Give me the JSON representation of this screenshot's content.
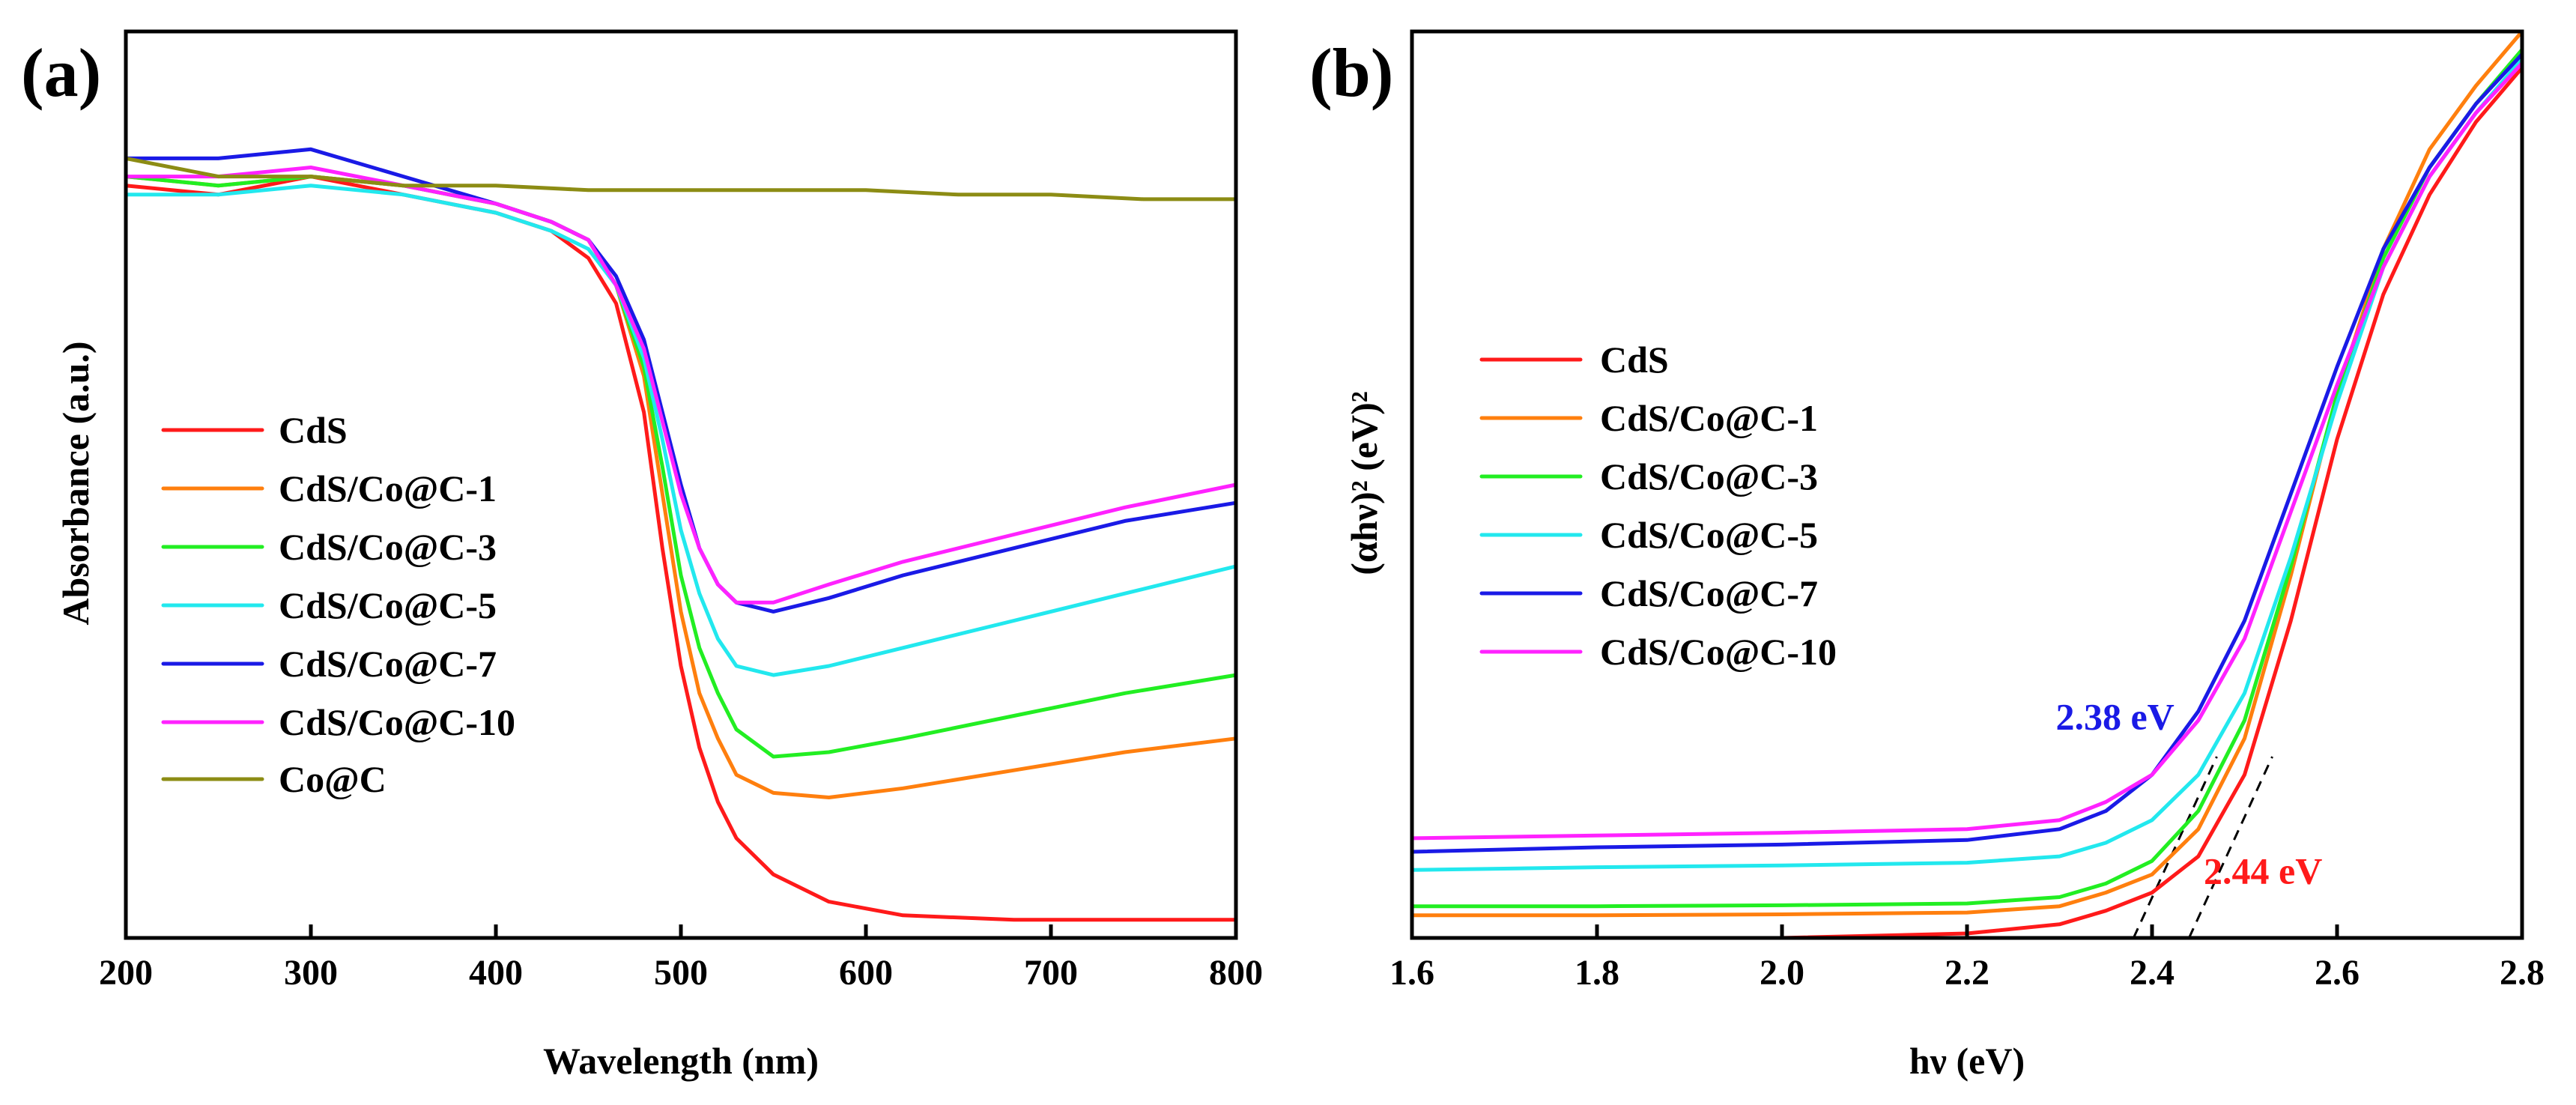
{
  "chart_data": [
    {
      "panel_label": "(a)",
      "type": "line",
      "xlabel": "Wavelength (nm)",
      "ylabel": "Absorbance (a.u.)",
      "xlim": [
        200,
        800
      ],
      "ylim": [
        0,
        100
      ],
      "xticks": [
        200,
        300,
        400,
        500,
        600,
        700,
        800
      ],
      "legend": [
        "CdS",
        "CdS/Co@C-1",
        "CdS/Co@C-3",
        "CdS/Co@C-5",
        "CdS/Co@C-7",
        "CdS/Co@C-10",
        "Co@C"
      ],
      "series": [
        {
          "name": "CdS",
          "color": "#ff1a1a",
          "x": [
            200,
            250,
            300,
            350,
            400,
            430,
            450,
            465,
            480,
            490,
            500,
            510,
            520,
            530,
            550,
            580,
            620,
            680,
            740,
            800
          ],
          "y": [
            83,
            82,
            84,
            82,
            80,
            78,
            75,
            70,
            58,
            43,
            30,
            21,
            15,
            11,
            7,
            4,
            2.5,
            2,
            2,
            2
          ]
        },
        {
          "name": "CdS/Co@C-1",
          "color": "#ff7f0e",
          "x": [
            200,
            250,
            300,
            350,
            400,
            430,
            450,
            465,
            480,
            490,
            500,
            510,
            520,
            530,
            550,
            580,
            620,
            680,
            740,
            800
          ],
          "y": [
            84,
            83,
            84,
            83,
            81,
            79,
            77,
            72,
            62,
            49,
            36,
            27,
            22,
            18,
            16,
            15.5,
            16.5,
            18.5,
            20.5,
            22
          ]
        },
        {
          "name": "CdS/Co@C-3",
          "color": "#22ee22",
          "x": [
            200,
            250,
            300,
            350,
            400,
            430,
            450,
            465,
            480,
            490,
            500,
            510,
            520,
            530,
            550,
            580,
            620,
            680,
            740,
            800
          ],
          "y": [
            84,
            83,
            84,
            83,
            81,
            79,
            77,
            72,
            63,
            52,
            40,
            32,
            27,
            23,
            20,
            20.5,
            22,
            24.5,
            27,
            29
          ]
        },
        {
          "name": "CdS/Co@C-5",
          "color": "#22e8ee",
          "x": [
            200,
            250,
            300,
            350,
            400,
            430,
            450,
            465,
            480,
            490,
            500,
            510,
            520,
            530,
            550,
            580,
            620,
            680,
            740,
            800
          ],
          "y": [
            82,
            82,
            83,
            82,
            80,
            78,
            76,
            72,
            64,
            55,
            45,
            38,
            33,
            30,
            29,
            30,
            32,
            35,
            38,
            41
          ]
        },
        {
          "name": "CdS/Co@C-7",
          "color": "#1a1ae6",
          "x": [
            200,
            250,
            300,
            350,
            400,
            430,
            450,
            465,
            480,
            490,
            500,
            510,
            520,
            530,
            550,
            580,
            620,
            680,
            740,
            800
          ],
          "y": [
            86,
            86,
            87,
            84,
            81,
            79,
            77,
            73,
            66,
            58,
            50,
            43,
            39,
            37,
            36,
            37.5,
            40,
            43,
            46,
            48
          ]
        },
        {
          "name": "CdS/Co@C-10",
          "color": "#ff22ff",
          "x": [
            200,
            250,
            300,
            350,
            400,
            430,
            450,
            465,
            480,
            490,
            500,
            510,
            520,
            530,
            550,
            580,
            620,
            680,
            740,
            800
          ],
          "y": [
            84,
            84,
            85,
            83,
            81,
            79,
            77,
            72,
            65,
            57,
            49,
            43,
            39,
            37,
            37,
            39,
            41.5,
            44.5,
            47.5,
            50
          ]
        },
        {
          "name": "Co@C",
          "color": "#8c8c14",
          "x": [
            200,
            250,
            300,
            350,
            400,
            450,
            500,
            550,
            600,
            650,
            700,
            750,
            800
          ],
          "y": [
            86,
            84,
            84,
            83,
            83,
            82.5,
            82.5,
            82.5,
            82.5,
            82,
            82,
            81.5,
            81.5
          ]
        }
      ]
    },
    {
      "panel_label": "(b)",
      "type": "line",
      "xlabel": "hν (eV)",
      "ylabel": "(αhν)² (eV)²",
      "xlim": [
        1.6,
        2.8
      ],
      "ylim": [
        0,
        100
      ],
      "xticks": [
        "1.6",
        "1.8",
        "2.0",
        "2.2",
        "2.4",
        "2.6",
        "2.8"
      ],
      "legend": [
        "CdS",
        "CdS/Co@C-1",
        "CdS/Co@C-3",
        "CdS/Co@C-5",
        "CdS/Co@C-7",
        "CdS/Co@C-10"
      ],
      "annotations": [
        {
          "text": "2.38 eV",
          "color": "#1a1ae6",
          "x": 2.36,
          "y": 23
        },
        {
          "text": "2.44 eV",
          "color": "#ff1a1a",
          "x": 2.52,
          "y": 6
        }
      ],
      "extrapolations": [
        {
          "x": [
            2.38,
            2.47
          ],
          "y": [
            0,
            20
          ]
        },
        {
          "x": [
            2.44,
            2.53
          ],
          "y": [
            0,
            20
          ]
        }
      ],
      "series": [
        {
          "name": "CdS",
          "color": "#ff1a1a",
          "x": [
            1.6,
            1.8,
            2.0,
            2.2,
            2.3,
            2.35,
            2.4,
            2.45,
            2.5,
            2.55,
            2.6,
            2.65,
            2.7,
            2.75,
            2.8
          ],
          "y": [
            0,
            0,
            0,
            0.5,
            1.5,
            3,
            5,
            9,
            18,
            35,
            55,
            71,
            82,
            90,
            96
          ]
        },
        {
          "name": "CdS/Co@C-1",
          "color": "#ff7f0e",
          "x": [
            1.6,
            1.8,
            2.0,
            2.2,
            2.3,
            2.35,
            2.4,
            2.45,
            2.5,
            2.55,
            2.6,
            2.65,
            2.7,
            2.75,
            2.8
          ],
          "y": [
            2.5,
            2.5,
            2.6,
            2.8,
            3.5,
            5,
            7,
            12,
            22,
            40,
            60,
            76,
            87,
            94,
            100
          ]
        },
        {
          "name": "CdS/Co@C-3",
          "color": "#22ee22",
          "x": [
            1.6,
            1.8,
            2.0,
            2.2,
            2.3,
            2.35,
            2.4,
            2.45,
            2.5,
            2.55,
            2.6,
            2.65,
            2.7,
            2.75,
            2.8
          ],
          "y": [
            3.5,
            3.5,
            3.6,
            3.8,
            4.5,
            6,
            8.5,
            14,
            24,
            41,
            60,
            75,
            85,
            92,
            98
          ]
        },
        {
          "name": "CdS/Co@C-5",
          "color": "#22e8ee",
          "x": [
            1.6,
            1.8,
            2.0,
            2.2,
            2.3,
            2.35,
            2.4,
            2.45,
            2.5,
            2.55,
            2.6,
            2.65,
            2.7,
            2.75,
            2.8
          ],
          "y": [
            7.5,
            7.8,
            8,
            8.3,
            9,
            10.5,
            13,
            18,
            27,
            42,
            59,
            74,
            84,
            91,
            97
          ]
        },
        {
          "name": "CdS/Co@C-7",
          "color": "#1a1ae6",
          "x": [
            1.6,
            1.8,
            2.0,
            2.2,
            2.3,
            2.35,
            2.4,
            2.45,
            2.5,
            2.55,
            2.6,
            2.65,
            2.7,
            2.75,
            2.8
          ],
          "y": [
            9.5,
            10,
            10.3,
            10.8,
            12,
            14,
            18,
            25,
            35,
            49,
            63,
            76,
            85,
            92,
            97.5
          ]
        },
        {
          "name": "CdS/Co@C-10",
          "color": "#ff22ff",
          "x": [
            1.6,
            1.8,
            2.0,
            2.2,
            2.3,
            2.35,
            2.4,
            2.45,
            2.5,
            2.55,
            2.6,
            2.65,
            2.7,
            2.75,
            2.8
          ],
          "y": [
            11,
            11.3,
            11.6,
            12,
            13,
            15,
            18,
            24,
            33,
            47,
            61,
            74,
            84,
            91,
            96.5
          ]
        }
      ]
    }
  ]
}
